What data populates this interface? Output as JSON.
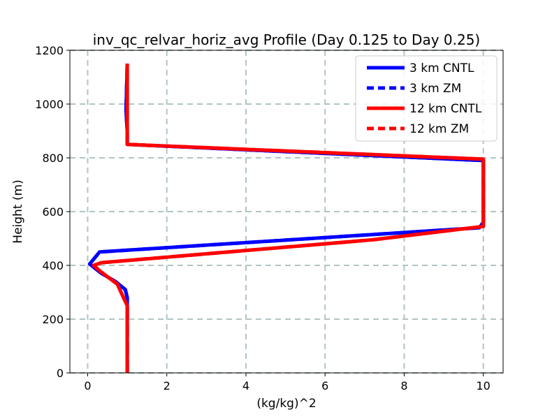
{
  "chart_data": {
    "type": "line",
    "title": "inv_qc_relvar_horiz_avg Profile (Day 0.125 to Day 0.25)",
    "xlabel": "(kg/kg)^2",
    "ylabel": "Height (m)",
    "xlim": [
      -0.45,
      10.5
    ],
    "ylim": [
      0,
      1200
    ],
    "xticks": [
      0,
      2,
      4,
      6,
      8,
      10
    ],
    "yticks": [
      0,
      200,
      400,
      600,
      800,
      1000,
      1200
    ],
    "grid": true,
    "legend_position": "top-right",
    "series": [
      {
        "name": "3 km CNTL",
        "color": "#0000ff",
        "dash": "solid",
        "x": [
          1,
          1,
          1,
          1,
          0.95,
          0.7,
          0.35,
          0.05,
          0.3,
          9.9,
          10,
          10,
          10,
          1,
          1,
          0.97,
          1
        ],
        "y": [
          0,
          200,
          250,
          280,
          310,
          340,
          370,
          405,
          450,
          540,
          560,
          700,
          790,
          850,
          900,
          975,
          1150
        ]
      },
      {
        "name": "3 km ZM",
        "color": "#0000ff",
        "dash": "dashed",
        "x": [
          1,
          1,
          1,
          1,
          0.95,
          0.7,
          0.35,
          0.05,
          0.3,
          9.9,
          10,
          10,
          10,
          1,
          1,
          0.97,
          1
        ],
        "y": [
          0,
          200,
          250,
          280,
          310,
          340,
          370,
          405,
          450,
          540,
          560,
          700,
          790,
          850,
          900,
          975,
          1150
        ]
      },
      {
        "name": "12 km CNTL",
        "color": "#ff0000",
        "dash": "solid",
        "x": [
          1,
          1,
          1,
          0.75,
          0.3,
          0.15,
          0.35,
          7.2,
          10,
          10,
          10,
          1,
          1,
          1
        ],
        "y": [
          0,
          200,
          250,
          330,
          380,
          400,
          410,
          495,
          545,
          700,
          795,
          850,
          1000,
          1150
        ]
      },
      {
        "name": "12 km ZM",
        "color": "#ff0000",
        "dash": "dashed",
        "x": [
          1,
          1,
          1,
          0.75,
          0.3,
          0.15,
          0.35,
          7.2,
          10,
          10,
          10,
          1,
          1,
          1
        ],
        "y": [
          0,
          200,
          250,
          330,
          380,
          400,
          410,
          495,
          545,
          700,
          795,
          850,
          1000,
          1150
        ]
      }
    ]
  }
}
